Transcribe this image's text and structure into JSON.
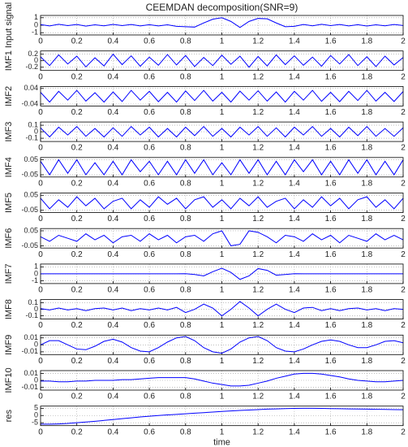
{
  "chart_data": [
    {
      "type": "line",
      "title": "CEEMDAN decomposition(SNR=9)",
      "ylabel": "Input signal",
      "color": "#0000ff",
      "grid": true,
      "x": [
        0,
        0.05,
        0.1,
        0.15,
        0.2,
        0.25,
        0.3,
        0.35,
        0.4,
        0.45,
        0.5,
        0.55,
        0.6,
        0.65,
        0.7,
        0.75,
        0.8,
        0.85,
        0.9,
        0.95,
        1,
        1.05,
        1.1,
        1.15,
        1.2,
        1.25,
        1.3,
        1.35,
        1.4,
        1.45,
        1.5,
        1.55,
        1.6,
        1.65,
        1.7,
        1.75,
        1.8,
        1.85,
        1.9,
        1.95,
        2
      ],
      "values": [
        0.08,
        -0.1,
        0.12,
        -0.05,
        0.1,
        -0.12,
        0.06,
        -0.08,
        0.11,
        -0.06,
        0.09,
        -0.1,
        0.07,
        -0.09,
        0.05,
        -0.15,
        -0.2,
        -0.25,
        0.3,
        0.8,
        1.0,
        0.5,
        -0.3,
        0.5,
        0.9,
        0.85,
        0.3,
        -0.2,
        -0.15,
        0.1,
        -0.08,
        0.12,
        -0.06,
        0.09,
        -0.1,
        0.07,
        -0.11,
        0.05,
        -0.08,
        0.1,
        -0.04
      ],
      "xlim": [
        0,
        2
      ],
      "xticks": [
        0,
        0.2,
        0.4,
        0.6,
        0.8,
        1,
        1.2,
        1.4,
        1.6,
        1.8,
        2
      ],
      "ylim": [
        -1.3,
        1.3
      ],
      "yticks": [
        -1,
        0,
        1
      ]
    },
    {
      "type": "line",
      "ylabel": "IMF1",
      "color": "#0000ff",
      "grid": true,
      "x": [
        0,
        0.05,
        0.1,
        0.15,
        0.2,
        0.25,
        0.3,
        0.35,
        0.4,
        0.45,
        0.5,
        0.55,
        0.6,
        0.65,
        0.7,
        0.75,
        0.8,
        0.85,
        0.9,
        0.95,
        1,
        1.05,
        1.1,
        1.15,
        1.2,
        1.25,
        1.3,
        1.35,
        1.4,
        1.45,
        1.5,
        1.55,
        1.6,
        1.65,
        1.7,
        1.75,
        1.8,
        1.85,
        1.9,
        1.95,
        2
      ],
      "values": [
        0.12,
        -0.15,
        0.18,
        -0.1,
        0.14,
        -0.19,
        0.09,
        -0.16,
        0.2,
        -0.12,
        0.15,
        -0.17,
        0.11,
        -0.14,
        0.19,
        -0.13,
        0.16,
        -0.18,
        0.1,
        -0.15,
        0.17,
        -0.11,
        0.14,
        -0.2,
        0.13,
        -0.16,
        0.18,
        -0.12,
        0.15,
        -0.14,
        0.11,
        -0.17,
        0.16,
        -0.1,
        0.19,
        -0.15,
        0.12,
        -0.18,
        0.14,
        -0.13,
        0.1
      ],
      "xlim": [
        0,
        2
      ],
      "xticks": [
        0,
        0.2,
        0.4,
        0.6,
        0.8,
        1,
        1.2,
        1.4,
        1.6,
        1.8,
        2
      ],
      "ylim": [
        -0.3,
        0.3
      ],
      "yticks": [
        -0.2,
        0,
        0.2
      ]
    },
    {
      "type": "line",
      "ylabel": "IMF2",
      "color": "#0000ff",
      "grid": true,
      "x": [
        0,
        0.05,
        0.1,
        0.15,
        0.2,
        0.25,
        0.3,
        0.35,
        0.4,
        0.45,
        0.5,
        0.55,
        0.6,
        0.65,
        0.7,
        0.75,
        0.8,
        0.85,
        0.9,
        0.95,
        1,
        1.05,
        1.1,
        1.15,
        1.2,
        1.25,
        1.3,
        1.35,
        1.4,
        1.45,
        1.5,
        1.55,
        1.6,
        1.65,
        1.7,
        1.75,
        1.8,
        1.85,
        1.9,
        1.95,
        2
      ],
      "values": [
        0.02,
        -0.03,
        0.025,
        -0.02,
        0.03,
        -0.025,
        0.018,
        -0.03,
        0.022,
        -0.027,
        0.03,
        -0.02,
        0.025,
        -0.028,
        0.02,
        -0.03,
        0.027,
        -0.022,
        0.03,
        -0.025,
        0.02,
        -0.03,
        0.026,
        -0.02,
        0.028,
        -0.025,
        0.022,
        -0.03,
        0.025,
        -0.02,
        0.03,
        -0.026,
        0.02,
        -0.028,
        0.025,
        -0.022,
        0.03,
        -0.025,
        0.02,
        -0.027,
        0.024
      ],
      "xlim": [
        0,
        2
      ],
      "xticks": [
        0,
        0.2,
        0.4,
        0.6,
        0.8,
        1,
        1.2,
        1.4,
        1.6,
        1.8,
        2
      ],
      "ylim": [
        -0.05,
        0.05
      ],
      "yticks": [
        -0.04,
        0.04
      ]
    },
    {
      "type": "line",
      "ylabel": "IMF3",
      "color": "#0000ff",
      "grid": true,
      "x": [
        0,
        0.05,
        0.1,
        0.15,
        0.2,
        0.25,
        0.3,
        0.35,
        0.4,
        0.45,
        0.5,
        0.55,
        0.6,
        0.65,
        0.7,
        0.75,
        0.8,
        0.85,
        0.9,
        0.95,
        1,
        1.05,
        1.1,
        1.15,
        1.2,
        1.25,
        1.3,
        1.35,
        1.4,
        1.45,
        1.5,
        1.55,
        1.6,
        1.65,
        1.7,
        1.75,
        1.8,
        1.85,
        1.9,
        1.95,
        2
      ],
      "values": [
        0.06,
        -0.08,
        0.07,
        -0.05,
        0.08,
        -0.07,
        0.05,
        -0.08,
        0.06,
        -0.07,
        0.08,
        -0.05,
        0.07,
        -0.08,
        0.05,
        -0.08,
        0.07,
        -0.06,
        0.08,
        -0.07,
        0.05,
        -0.08,
        0.07,
        -0.05,
        0.08,
        -0.07,
        0.06,
        -0.08,
        0.07,
        -0.05,
        0.08,
        -0.07,
        0.05,
        -0.08,
        0.07,
        -0.06,
        0.08,
        -0.07,
        0.05,
        -0.07,
        0.06
      ],
      "xlim": [
        0,
        2
      ],
      "xticks": [
        0,
        0.2,
        0.4,
        0.6,
        0.8,
        1,
        1.2,
        1.4,
        1.6,
        1.8,
        2
      ],
      "ylim": [
        -0.15,
        0.15
      ],
      "yticks": [
        -0.1,
        0,
        0.1
      ]
    },
    {
      "type": "line",
      "ylabel": "IMF4",
      "color": "#0000ff",
      "grid": true,
      "x": [
        0,
        0.05,
        0.1,
        0.15,
        0.2,
        0.25,
        0.3,
        0.35,
        0.4,
        0.45,
        0.5,
        0.55,
        0.6,
        0.65,
        0.7,
        0.75,
        0.8,
        0.85,
        0.9,
        0.95,
        1,
        1.05,
        1.1,
        1.15,
        1.2,
        1.25,
        1.3,
        1.35,
        1.4,
        1.45,
        1.5,
        1.55,
        1.6,
        1.65,
        1.7,
        1.75,
        1.8,
        1.85,
        1.9,
        1.95,
        2
      ],
      "values": [
        0.04,
        -0.05,
        0.05,
        -0.04,
        0.05,
        -0.05,
        0.03,
        -0.05,
        0.04,
        -0.05,
        0.05,
        -0.03,
        0.04,
        -0.05,
        0.04,
        -0.05,
        0.05,
        -0.04,
        0.05,
        -0.05,
        0.03,
        -0.05,
        0.05,
        -0.04,
        0.05,
        -0.05,
        0.04,
        -0.05,
        0.05,
        -0.03,
        0.05,
        -0.05,
        0.04,
        -0.05,
        0.05,
        -0.04,
        0.05,
        -0.05,
        0.04,
        -0.05,
        0.05
      ],
      "xlim": [
        0,
        2
      ],
      "xticks": [
        0,
        0.2,
        0.4,
        0.6,
        0.8,
        1,
        1.2,
        1.4,
        1.6,
        1.8,
        2
      ],
      "ylim": [
        -0.065,
        0.065
      ],
      "yticks": [
        -0.05,
        0.05
      ]
    },
    {
      "type": "line",
      "ylabel": "IMF5",
      "color": "#0000ff",
      "grid": true,
      "x": [
        0,
        0.05,
        0.1,
        0.15,
        0.2,
        0.25,
        0.3,
        0.35,
        0.4,
        0.45,
        0.5,
        0.55,
        0.6,
        0.65,
        0.7,
        0.75,
        0.8,
        0.85,
        0.9,
        0.95,
        1,
        1.05,
        1.1,
        1.15,
        1.2,
        1.25,
        1.3,
        1.35,
        1.4,
        1.45,
        1.5,
        1.55,
        1.6,
        1.65,
        1.7,
        1.75,
        1.8,
        1.85,
        1.9,
        1.95,
        2
      ],
      "values": [
        0.03,
        -0.04,
        0.02,
        -0.03,
        0.04,
        -0.02,
        0.03,
        -0.04,
        0.01,
        0.03,
        -0.04,
        0.02,
        -0.03,
        0.04,
        -0.01,
        0.03,
        -0.04,
        0.02,
        0.04,
        -0.03,
        0.02,
        -0.04,
        0.03,
        -0.02,
        0.04,
        -0.03,
        0.01,
        0.03,
        -0.04,
        0.02,
        -0.03,
        0.04,
        -0.02,
        0.03,
        -0.04,
        0.02,
        0.04,
        -0.03,
        0.02,
        -0.04,
        0.03
      ],
      "xlim": [
        0,
        2
      ],
      "xticks": [
        0,
        0.2,
        0.4,
        0.6,
        0.8,
        1,
        1.2,
        1.4,
        1.6,
        1.8,
        2
      ],
      "ylim": [
        -0.065,
        0.065
      ],
      "yticks": [
        -0.05,
        0.05
      ]
    },
    {
      "type": "line",
      "ylabel": "IMF6",
      "color": "#0000ff",
      "grid": true,
      "x": [
        0,
        0.05,
        0.1,
        0.15,
        0.2,
        0.25,
        0.3,
        0.35,
        0.4,
        0.45,
        0.5,
        0.55,
        0.6,
        0.65,
        0.7,
        0.75,
        0.8,
        0.85,
        0.9,
        0.95,
        1,
        1.05,
        1.1,
        1.15,
        1.2,
        1.25,
        1.3,
        1.35,
        1.4,
        1.45,
        1.5,
        1.55,
        1.6,
        1.65,
        1.7,
        1.75,
        1.8,
        1.85,
        1.9,
        1.95,
        2
      ],
      "values": [
        0.01,
        -0.02,
        0.02,
        0,
        -0.02,
        0.03,
        -0.01,
        0.02,
        -0.03,
        0.01,
        0.02,
        -0.02,
        0.03,
        -0.01,
        0.02,
        -0.03,
        0.01,
        0.02,
        -0.02,
        0.03,
        0.05,
        -0.05,
        -0.04,
        0.05,
        0.04,
        0.01,
        -0.03,
        0.02,
        0.01,
        -0.02,
        0.03,
        -0.01,
        0.02,
        -0.03,
        0.02,
        0,
        -0.02,
        0.03,
        -0.01,
        0.02,
        -0.01
      ],
      "xlim": [
        0,
        2
      ],
      "xticks": [
        0,
        0.2,
        0.4,
        0.6,
        0.8,
        1,
        1.2,
        1.4,
        1.6,
        1.8,
        2
      ],
      "ylim": [
        -0.065,
        0.065
      ],
      "yticks": [
        -0.05,
        0.05
      ]
    },
    {
      "type": "line",
      "ylabel": "IMF7",
      "color": "#0000ff",
      "grid": true,
      "x": [
        0,
        0.05,
        0.1,
        0.15,
        0.2,
        0.25,
        0.3,
        0.35,
        0.4,
        0.45,
        0.5,
        0.55,
        0.6,
        0.65,
        0.7,
        0.75,
        0.8,
        0.85,
        0.9,
        0.95,
        1,
        1.05,
        1.1,
        1.15,
        1.2,
        1.25,
        1.3,
        1.35,
        1.4,
        1.45,
        1.5,
        1.55,
        1.6,
        1.65,
        1.7,
        1.75,
        1.8,
        1.85,
        1.9,
        1.95,
        2
      ],
      "values": [
        0,
        0,
        0,
        0,
        0,
        0,
        0,
        0,
        0,
        0,
        0,
        0,
        0,
        0,
        0,
        0,
        0.02,
        -0.1,
        -0.3,
        0.3,
        0.8,
        0.2,
        -0.8,
        -0.3,
        0.75,
        0.5,
        -0.2,
        -0.1,
        0.02,
        0,
        0,
        0,
        0,
        0,
        0,
        0,
        0,
        0,
        0,
        0,
        0
      ],
      "xlim": [
        0,
        2
      ],
      "xticks": [
        0,
        0.2,
        0.4,
        0.6,
        0.8,
        1,
        1.2,
        1.4,
        1.6,
        1.8,
        2
      ],
      "ylim": [
        -1.4,
        1.4
      ],
      "yticks": [
        -1,
        0,
        1
      ]
    },
    {
      "type": "line",
      "ylabel": "IMF8",
      "color": "#0000ff",
      "grid": true,
      "x": [
        0,
        0.05,
        0.1,
        0.15,
        0.2,
        0.25,
        0.3,
        0.35,
        0.4,
        0.45,
        0.5,
        0.55,
        0.6,
        0.65,
        0.7,
        0.75,
        0.8,
        0.85,
        0.9,
        0.95,
        1,
        1.05,
        1.1,
        1.15,
        1.2,
        1.25,
        1.3,
        1.35,
        1.4,
        1.45,
        1.5,
        1.55,
        1.6,
        1.65,
        1.7,
        1.75,
        1.8,
        1.85,
        1.9,
        1.95,
        2
      ],
      "values": [
        0.01,
        -0.01,
        0.02,
        -0.01,
        0.01,
        -0.02,
        0.01,
        0.02,
        -0.01,
        0.02,
        -0.02,
        0.01,
        -0.01,
        0.02,
        -0.01,
        0.03,
        -0.05,
        0,
        0.08,
        0.02,
        -0.1,
        0,
        0.12,
        0.02,
        -0.1,
        0,
        0.08,
        0,
        -0.05,
        0.02,
        0.03,
        -0.02,
        0.01,
        -0.02,
        0.01,
        0.02,
        -0.01,
        0.01,
        -0.02,
        0.01,
        0
      ],
      "xlim": [
        0,
        2
      ],
      "xticks": [
        0,
        0.2,
        0.4,
        0.6,
        0.8,
        1,
        1.2,
        1.4,
        1.6,
        1.8,
        2
      ],
      "ylim": [
        -0.15,
        0.15
      ],
      "yticks": [
        -0.1,
        0,
        0.1
      ]
    },
    {
      "type": "line",
      "ylabel": "IMF9",
      "color": "#0000ff",
      "grid": true,
      "x": [
        0,
        0.05,
        0.1,
        0.15,
        0.2,
        0.25,
        0.3,
        0.35,
        0.4,
        0.45,
        0.5,
        0.55,
        0.6,
        0.65,
        0.7,
        0.75,
        0.8,
        0.85,
        0.9,
        0.95,
        1,
        1.05,
        1.1,
        1.15,
        1.2,
        1.25,
        1.3,
        1.35,
        1.4,
        1.45,
        1.5,
        1.55,
        1.6,
        1.65,
        1.7,
        1.75,
        1.8,
        1.85,
        1.9,
        1.95,
        2
      ],
      "values": [
        0,
        0.006,
        0.006,
        0,
        -0.006,
        -0.007,
        -0.002,
        0.005,
        0.008,
        0.004,
        -0.004,
        -0.009,
        -0.01,
        -0.004,
        0.004,
        0.01,
        0.012,
        0.006,
        -0.004,
        -0.01,
        -0.012,
        -0.006,
        0.004,
        0.01,
        0.012,
        0.006,
        -0.004,
        -0.009,
        -0.01,
        -0.006,
        0,
        0.005,
        0.007,
        0.005,
        0,
        -0.004,
        -0.004,
        0,
        0.005,
        0.006,
        0.003
      ],
      "xlim": [
        0,
        2
      ],
      "xticks": [
        0,
        0.2,
        0.4,
        0.6,
        0.8,
        1,
        1.2,
        1.4,
        1.6,
        1.8,
        2
      ],
      "ylim": [
        -0.014,
        0.014
      ],
      "yticks": [
        -0.01,
        0,
        0.01
      ]
    },
    {
      "type": "line",
      "ylabel": "IMF10",
      "color": "#0000ff",
      "grid": true,
      "x": [
        0,
        0.05,
        0.1,
        0.15,
        0.2,
        0.25,
        0.3,
        0.35,
        0.4,
        0.45,
        0.5,
        0.55,
        0.6,
        0.65,
        0.7,
        0.75,
        0.8,
        0.85,
        0.9,
        0.95,
        1,
        1.05,
        1.1,
        1.15,
        1.2,
        1.25,
        1.3,
        1.35,
        1.4,
        1.45,
        1.5,
        1.55,
        1.6,
        1.65,
        1.7,
        1.75,
        1.8,
        1.85,
        1.9,
        1.95,
        2
      ],
      "values": [
        -0.001,
        -0.001,
        -0.002,
        -0.002,
        -0.001,
        -0.001,
        0,
        0,
        0,
        0.001,
        0.001,
        0.002,
        0.003,
        0.004,
        0.004,
        0.004,
        0.004,
        0.002,
        -0.001,
        -0.004,
        -0.006,
        -0.008,
        -0.008,
        -0.007,
        -0.004,
        -0.001,
        0.003,
        0.006,
        0.009,
        0.01,
        0.01,
        0.009,
        0.007,
        0.005,
        0.002,
        0,
        -0.001,
        -0.002,
        -0.002,
        -0.001,
        0
      ],
      "xlim": [
        0,
        2
      ],
      "xticks": [
        0,
        0.2,
        0.4,
        0.6,
        0.8,
        1,
        1.2,
        1.4,
        1.6,
        1.8,
        2
      ],
      "ylim": [
        -0.014,
        0.014
      ],
      "yticks": [
        -0.01,
        0,
        0.01
      ]
    },
    {
      "type": "line",
      "ylabel": "res",
      "xlabel": "time",
      "color": "#0000ff",
      "grid": true,
      "x": [
        0,
        0.05,
        0.1,
        0.15,
        0.2,
        0.25,
        0.3,
        0.35,
        0.4,
        0.45,
        0.5,
        0.55,
        0.6,
        0.65,
        0.7,
        0.75,
        0.8,
        0.85,
        0.9,
        0.95,
        1,
        1.05,
        1.1,
        1.15,
        1.2,
        1.25,
        1.3,
        1.35,
        1.4,
        1.45,
        1.5,
        1.55,
        1.6,
        1.65,
        1.7,
        1.75,
        1.8,
        1.85,
        1.9,
        1.95,
        2
      ],
      "values": [
        -6,
        -6,
        -5.8,
        -5.5,
        -5,
        -4.5,
        -4,
        -3.4,
        -2.8,
        -2.2,
        -1.6,
        -1,
        -0.5,
        0,
        0.4,
        0.8,
        1.2,
        1.6,
        2,
        2.4,
        2.8,
        3.2,
        3.5,
        3.8,
        4.1,
        4.4,
        4.6,
        4.8,
        4.9,
        5,
        5,
        4.9,
        4.8,
        4.7,
        4.6,
        4.5,
        4.4,
        4.3,
        4.2,
        4.1,
        4
      ],
      "xlim": [
        0,
        2
      ],
      "xticks": [
        0,
        0.2,
        0.4,
        0.6,
        0.8,
        1,
        1.2,
        1.4,
        1.6,
        1.8,
        2
      ],
      "ylim": [
        -7,
        6.5
      ],
      "yticks": [
        -5,
        0,
        5
      ]
    }
  ]
}
